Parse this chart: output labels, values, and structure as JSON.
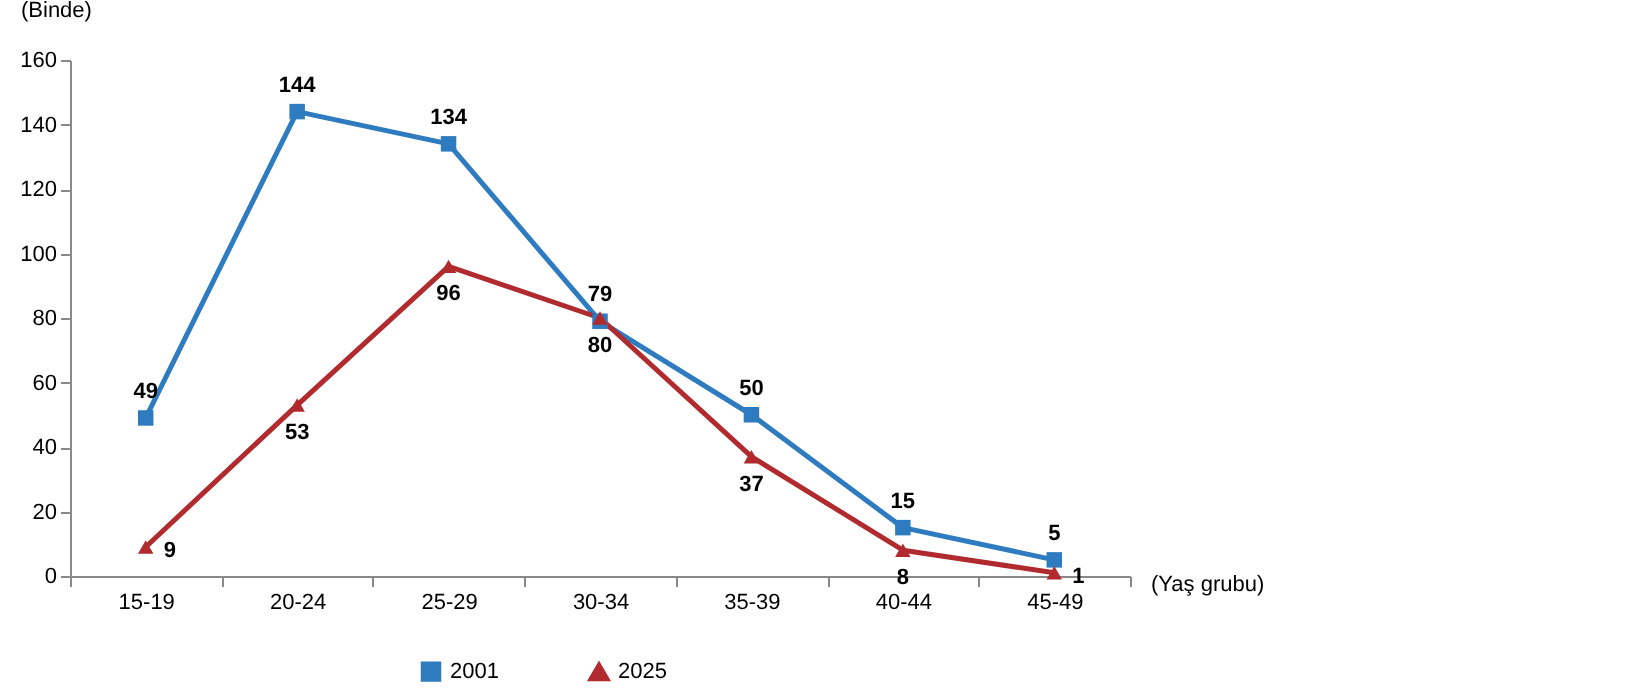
{
  "chart_data": {
    "type": "line",
    "ylabel": "(Binde)",
    "xlabel": "(Yaş grubu)",
    "categories": [
      "15-19",
      "20-24",
      "25-29",
      "30-34",
      "35-39",
      "40-44",
      "45-49"
    ],
    "series": [
      {
        "name": "2001",
        "color": "#2e7cbf",
        "marker": "square",
        "values": [
          49,
          144,
          134,
          79,
          50,
          15,
          5
        ]
      },
      {
        "name": "2025",
        "color": "#b02a2e",
        "marker": "triangle",
        "values": [
          9,
          53,
          96,
          80,
          37,
          8,
          1
        ]
      }
    ],
    "ylim": [
      0,
      160
    ],
    "yticks": [
      0,
      20,
      40,
      60,
      80,
      100,
      120,
      140,
      160
    ],
    "grid": false,
    "legend": "bottom",
    "data_labels": true,
    "line_style": "solid"
  }
}
